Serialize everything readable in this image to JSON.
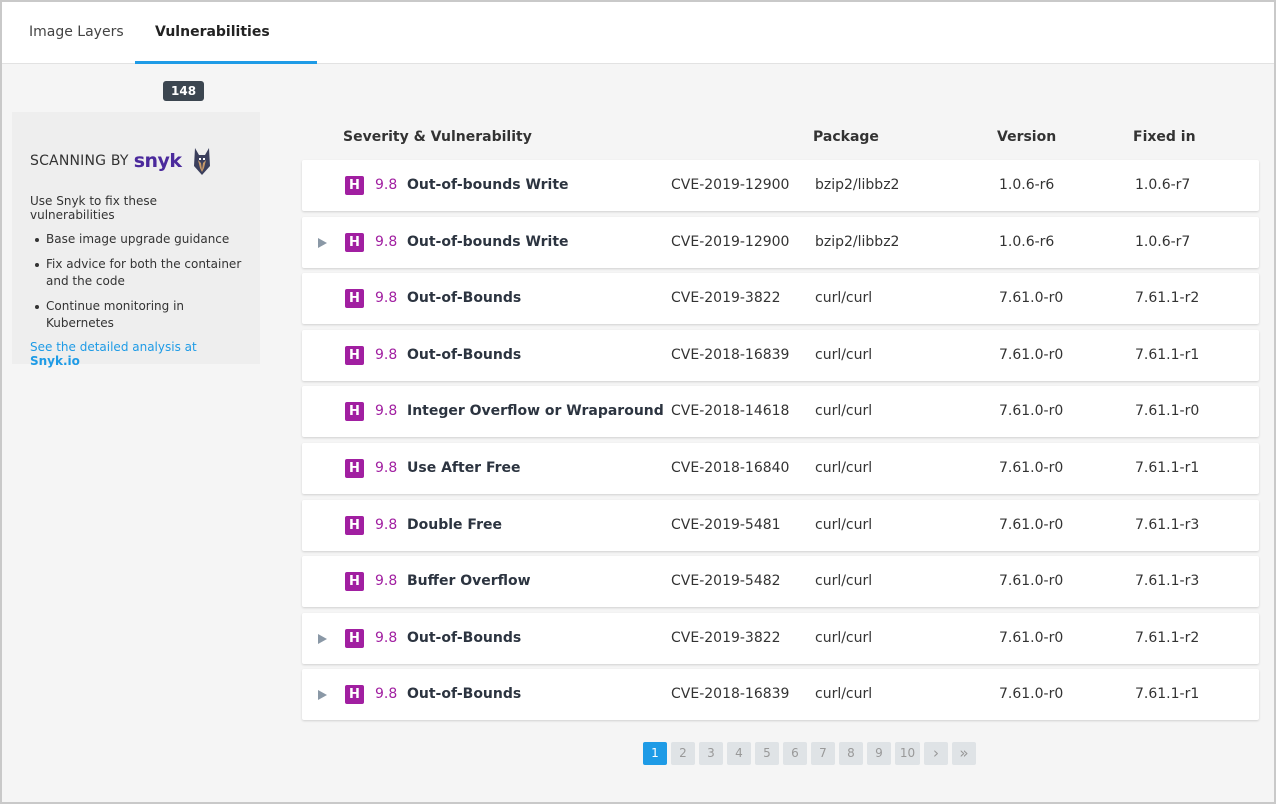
{
  "tabs": [
    {
      "label": "Image Layers"
    },
    {
      "label": "Vulnerabilities",
      "count": "148"
    }
  ],
  "sidebar": {
    "scanning_by": "SCANNING BY",
    "brand": "snyk",
    "intro": "Use Snyk to fix these vulnerabilities",
    "bullets": [
      "Base image upgrade guidance",
      "Fix advice for both the container and the code",
      "Continue monitoring in Kubernetes"
    ],
    "link_prefix": "See the detailed analysis at ",
    "link_bold": "Snyk.io"
  },
  "table": {
    "headers": [
      "Severity & Vulnerability",
      "Package",
      "Version",
      "Fixed in"
    ],
    "rows": [
      {
        "expandable": false,
        "severity": "H",
        "score": "9.8",
        "name": "Out-of-bounds Write",
        "cve": "CVE-2019-12900",
        "package": "bzip2/libbz2",
        "version": "1.0.6-r6",
        "fixed": "1.0.6-r7"
      },
      {
        "expandable": true,
        "severity": "H",
        "score": "9.8",
        "name": "Out-of-bounds Write",
        "cve": "CVE-2019-12900",
        "package": "bzip2/libbz2",
        "version": "1.0.6-r6",
        "fixed": "1.0.6-r7"
      },
      {
        "expandable": false,
        "severity": "H",
        "score": "9.8",
        "name": "Out-of-Bounds",
        "cve": "CVE-2019-3822",
        "package": "curl/curl",
        "version": "7.61.0-r0",
        "fixed": "7.61.1-r2"
      },
      {
        "expandable": false,
        "severity": "H",
        "score": "9.8",
        "name": "Out-of-Bounds",
        "cve": "CVE-2018-16839",
        "package": "curl/curl",
        "version": "7.61.0-r0",
        "fixed": "7.61.1-r1"
      },
      {
        "expandable": false,
        "severity": "H",
        "score": "9.8",
        "name": "Integer Overflow or Wraparound",
        "cve": "CVE-2018-14618",
        "package": "curl/curl",
        "version": "7.61.0-r0",
        "fixed": "7.61.1-r0"
      },
      {
        "expandable": false,
        "severity": "H",
        "score": "9.8",
        "name": "Use After Free",
        "cve": "CVE-2018-16840",
        "package": "curl/curl",
        "version": "7.61.0-r0",
        "fixed": "7.61.1-r1"
      },
      {
        "expandable": false,
        "severity": "H",
        "score": "9.8",
        "name": "Double Free",
        "cve": "CVE-2019-5481",
        "package": "curl/curl",
        "version": "7.61.0-r0",
        "fixed": "7.61.1-r3"
      },
      {
        "expandable": false,
        "severity": "H",
        "score": "9.8",
        "name": "Buffer Overflow",
        "cve": "CVE-2019-5482",
        "package": "curl/curl",
        "version": "7.61.0-r0",
        "fixed": "7.61.1-r3"
      },
      {
        "expandable": true,
        "severity": "H",
        "score": "9.8",
        "name": "Out-of-Bounds",
        "cve": "CVE-2019-3822",
        "package": "curl/curl",
        "version": "7.61.0-r0",
        "fixed": "7.61.1-r2"
      },
      {
        "expandable": true,
        "severity": "H",
        "score": "9.8",
        "name": "Out-of-Bounds",
        "cve": "CVE-2018-16839",
        "package": "curl/curl",
        "version": "7.61.0-r0",
        "fixed": "7.61.1-r1"
      }
    ]
  },
  "pagination": {
    "pages": [
      "1",
      "2",
      "3",
      "4",
      "5",
      "6",
      "7",
      "8",
      "9",
      "10"
    ],
    "current": "1",
    "next": "›",
    "last": "»"
  },
  "colors": {
    "accent": "#1e9be6",
    "severity_high": "#a11fa1",
    "brand": "#4b2a9c"
  }
}
